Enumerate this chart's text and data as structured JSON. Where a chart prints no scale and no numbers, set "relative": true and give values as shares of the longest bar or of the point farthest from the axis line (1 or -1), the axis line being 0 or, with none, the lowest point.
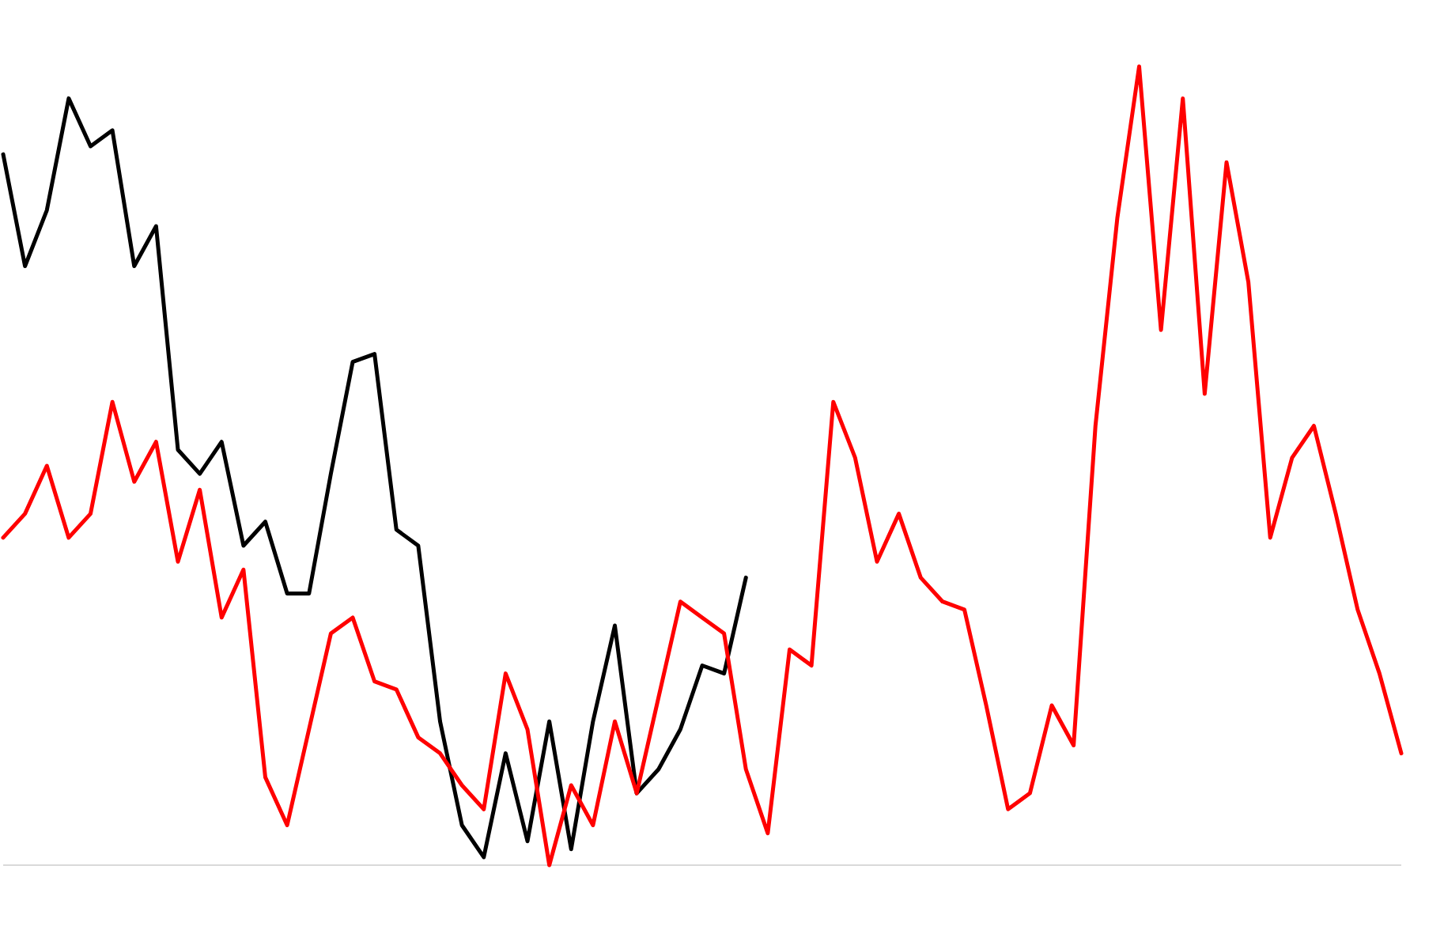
{
  "chart_data": {
    "type": "line",
    "relative": true,
    "categories": [
      null,
      null,
      null,
      null,
      null,
      null,
      null,
      null,
      null,
      null,
      null,
      null,
      null,
      null,
      null,
      null,
      null,
      null,
      null,
      null,
      null,
      null,
      null,
      null,
      null,
      null,
      null,
      null,
      null,
      null,
      null,
      null,
      null,
      null,
      null,
      null,
      null,
      null,
      null,
      null,
      null,
      null,
      null,
      null,
      null,
      null,
      null,
      null,
      null,
      null,
      null,
      null,
      null,
      null,
      null,
      null,
      null,
      null,
      null,
      null,
      null,
      null,
      null,
      null,
      null
    ],
    "series": [
      {
        "color": "#000000",
        "values": [
          0.89,
          0.75,
          0.82,
          0.96,
          0.9,
          0.92,
          0.75,
          0.8,
          0.52,
          0.49,
          0.53,
          0.4,
          0.43,
          0.34,
          0.34,
          0.49,
          0.63,
          0.64,
          0.42,
          0.4,
          0.18,
          0.05,
          0.01,
          0.14,
          0.03,
          0.18,
          0.02,
          0.18,
          0.3,
          0.09,
          0.12,
          0.17,
          0.25,
          0.24,
          0.36,
          null,
          null,
          null,
          null,
          null,
          null,
          null,
          null,
          null,
          null,
          null,
          null,
          null,
          null,
          null,
          null,
          null,
          null,
          null,
          null,
          null,
          null,
          null,
          null,
          null,
          null,
          null,
          null,
          null,
          null
        ]
      },
      {
        "color": "#ff0000",
        "values": [
          0.41,
          0.44,
          0.5,
          0.41,
          0.44,
          0.58,
          0.48,
          0.53,
          0.38,
          0.47,
          0.31,
          0.37,
          0.11,
          0.05,
          0.17,
          0.29,
          0.31,
          0.23,
          0.22,
          0.16,
          0.14,
          0.1,
          0.07,
          0.24,
          0.17,
          0,
          0.1,
          0.05,
          0.18,
          0.09,
          0.21,
          0.33,
          0.31,
          0.29,
          0.12,
          0.04,
          0.27,
          0.25,
          0.58,
          0.51,
          0.38,
          0.44,
          0.36,
          0.33,
          0.32,
          0.2,
          0.07,
          0.09,
          0.2,
          0.15,
          0.55,
          0.81,
          1,
          0.67,
          0.96,
          0.59,
          0.88,
          0.73,
          0.41,
          0.51,
          0.55,
          0.44,
          0.32,
          0.24,
          0.14
        ]
      }
    ],
    "marker": "none",
    "line_style": "solid"
  }
}
